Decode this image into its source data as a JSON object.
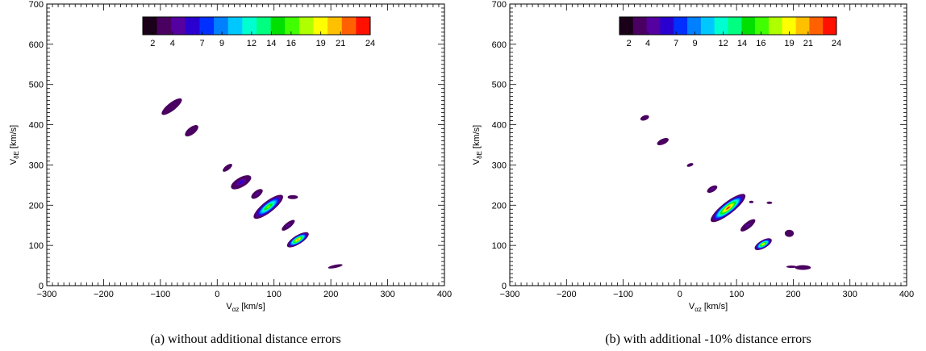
{
  "chart_data": [
    {
      "type": "contour",
      "caption": "(a) without additional distance errors",
      "xlabel_main": "V",
      "xlabel_sub": "αz",
      "xlabel_unit": "[km/s]",
      "ylabel_main": "V",
      "ylabel_sub": "δE",
      "ylabel_unit": "[km/s]",
      "xlim": [
        -300,
        400
      ],
      "ylim": [
        0,
        700
      ],
      "xticks": [
        "−300",
        "−200",
        "−100",
        "0",
        "100",
        "200",
        "300",
        "400"
      ],
      "yticks": [
        "0",
        "100",
        "200",
        "300",
        "400",
        "500",
        "600",
        "700"
      ],
      "colorbar": {
        "min": 1,
        "max": 24,
        "labels": [
          "2",
          "4",
          "7",
          "9",
          "12",
          "14",
          "16",
          "19",
          "21",
          "24"
        ],
        "label_values": [
          2,
          4,
          7,
          9,
          12,
          14,
          16,
          19,
          21,
          24
        ],
        "colors": [
          "#1a0018",
          "#4a0060",
          "#5500a0",
          "#2a00d0",
          "#0030ff",
          "#0080ff",
          "#00c8ff",
          "#00ffd0",
          "#00ff80",
          "#00e000",
          "#40ff00",
          "#b0ff00",
          "#ffff00",
          "#ffc000",
          "#ff6000",
          "#ff1000"
        ]
      },
      "blobs": [
        {
          "x": -80,
          "y": 445,
          "sx": 22,
          "sy": 10,
          "angle": -38,
          "peak": 3
        },
        {
          "x": -45,
          "y": 385,
          "sx": 14,
          "sy": 9,
          "angle": -38,
          "peak": 3
        },
        {
          "x": 18,
          "y": 293,
          "sx": 10,
          "sy": 6,
          "angle": -38,
          "peak": 3
        },
        {
          "x": 42,
          "y": 257,
          "sx": 20,
          "sy": 12,
          "angle": -30,
          "peak": 6
        },
        {
          "x": 90,
          "y": 196,
          "sx": 32,
          "sy": 14,
          "angle": -38,
          "peak": 17
        },
        {
          "x": 70,
          "y": 228,
          "sx": 12,
          "sy": 8,
          "angle": -38,
          "peak": 5
        },
        {
          "x": 125,
          "y": 150,
          "sx": 14,
          "sy": 7,
          "angle": -38,
          "peak": 4
        },
        {
          "x": 142,
          "y": 114,
          "sx": 22,
          "sy": 11,
          "angle": -32,
          "peak": 22
        },
        {
          "x": 133,
          "y": 220,
          "sx": 9,
          "sy": 5,
          "angle": 0,
          "peak": 3
        },
        {
          "x": 208,
          "y": 48,
          "sx": 13,
          "sy": 4,
          "angle": -12,
          "peak": 3
        }
      ]
    },
    {
      "type": "contour",
      "caption": "(b) with additional -10% distance errors",
      "xlabel_main": "V",
      "xlabel_sub": "αz",
      "xlabel_unit": "[km/s]",
      "ylabel_main": "V",
      "ylabel_sub": "δE",
      "ylabel_unit": "[km/s]",
      "xlim": [
        -300,
        400
      ],
      "ylim": [
        0,
        700
      ],
      "xticks": [
        "−300",
        "−200",
        "−100",
        "0",
        "100",
        "200",
        "300",
        "400"
      ],
      "yticks": [
        "0",
        "100",
        "200",
        "300",
        "400",
        "500",
        "600",
        "700"
      ],
      "colorbar": {
        "min": 1,
        "max": 24,
        "labels": [
          "2",
          "4",
          "7",
          "9",
          "12",
          "14",
          "16",
          "19",
          "21",
          "24"
        ],
        "label_values": [
          2,
          4,
          7,
          9,
          12,
          14,
          16,
          19,
          21,
          24
        ],
        "colors": [
          "#1a0018",
          "#4a0060",
          "#5500a0",
          "#2a00d0",
          "#0030ff",
          "#0080ff",
          "#00c8ff",
          "#00ffd0",
          "#00ff80",
          "#00e000",
          "#40ff00",
          "#b0ff00",
          "#ffff00",
          "#ffc000",
          "#ff6000",
          "#ff1000"
        ]
      },
      "blobs": [
        {
          "x": -62,
          "y": 417,
          "sx": 8,
          "sy": 6,
          "angle": -20,
          "peak": 3
        },
        {
          "x": -30,
          "y": 358,
          "sx": 11,
          "sy": 7,
          "angle": -25,
          "peak": 3
        },
        {
          "x": 18,
          "y": 300,
          "sx": 6,
          "sy": 4,
          "angle": -20,
          "peak": 3
        },
        {
          "x": 85,
          "y": 193,
          "sx": 38,
          "sy": 15,
          "angle": -38,
          "peak": 23
        },
        {
          "x": 57,
          "y": 240,
          "sx": 10,
          "sy": 7,
          "angle": -30,
          "peak": 5
        },
        {
          "x": 120,
          "y": 150,
          "sx": 16,
          "sy": 8,
          "angle": -38,
          "peak": 5
        },
        {
          "x": 147,
          "y": 103,
          "sx": 17,
          "sy": 10,
          "angle": -30,
          "peak": 21
        },
        {
          "x": 126,
          "y": 208,
          "sx": 4,
          "sy": 3,
          "angle": 0,
          "peak": 3
        },
        {
          "x": 158,
          "y": 206,
          "sx": 5,
          "sy": 3,
          "angle": 0,
          "peak": 3
        },
        {
          "x": 193,
          "y": 130,
          "sx": 8,
          "sy": 9,
          "angle": 0,
          "peak": 3
        },
        {
          "x": 217,
          "y": 45,
          "sx": 14,
          "sy": 6,
          "angle": 0,
          "peak": 3
        },
        {
          "x": 197,
          "y": 47,
          "sx": 9,
          "sy": 3,
          "angle": 0,
          "peak": 3
        }
      ]
    }
  ]
}
